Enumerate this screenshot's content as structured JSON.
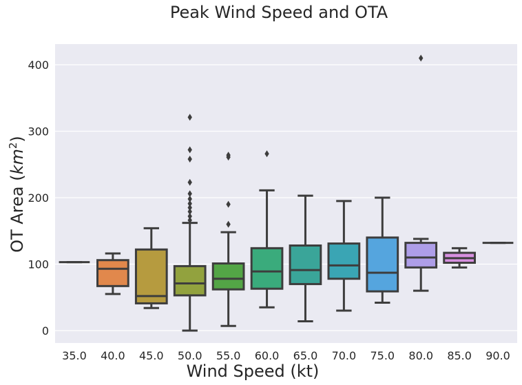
{
  "chart_data": {
    "type": "box",
    "title": "Peak Wind Speed and OTA",
    "xlabel": "Wind Speed (kt)",
    "ylabel": "OT Area (km²)",
    "ylabel_main": "OT Area (",
    "ylabel_km": "km",
    "ylabel_sup": "2",
    "ylabel_close": ")",
    "ylim": [
      -20,
      430
    ],
    "yticks": [
      0,
      100,
      200,
      300,
      400
    ],
    "grid": true,
    "categories": [
      "35.0",
      "40.0",
      "45.0",
      "50.0",
      "55.0",
      "60.0",
      "65.0",
      "70.0",
      "75.0",
      "80.0",
      "85.0",
      "90.0"
    ],
    "boxes": [
      {
        "category": "35.0",
        "whislo": 103,
        "q1": 103,
        "med": 103,
        "q3": 103,
        "whishi": 103,
        "fliers": [],
        "color": "#3a75ad"
      },
      {
        "category": "40.0",
        "whislo": 55,
        "q1": 67,
        "med": 93,
        "q3": 106,
        "whishi": 116,
        "fliers": [],
        "color": "#e1884c"
      },
      {
        "category": "45.0",
        "whislo": 34,
        "q1": 41,
        "med": 52,
        "q3": 122,
        "whishi": 154,
        "fliers": [],
        "color": "#b69b3f"
      },
      {
        "category": "50.0",
        "whislo": 0,
        "q1": 53,
        "med": 71,
        "q3": 97,
        "whishi": 162,
        "fliers": [
          321,
          272,
          258,
          223,
          206,
          198,
          191,
          185,
          179,
          172,
          166
        ],
        "color": "#92a23e"
      },
      {
        "category": "55.0",
        "whislo": 7,
        "q1": 62,
        "med": 78,
        "q3": 101,
        "whishi": 148,
        "fliers": [
          264,
          261,
          190,
          160
        ],
        "color": "#53a546"
      },
      {
        "category": "60.0",
        "whislo": 35,
        "q1": 63,
        "med": 89,
        "q3": 124,
        "whishi": 211,
        "fliers": [
          266
        ],
        "color": "#3aab7c"
      },
      {
        "category": "65.0",
        "whislo": 14,
        "q1": 70,
        "med": 91,
        "q3": 128,
        "whishi": 203,
        "fliers": [],
        "color": "#3aa599"
      },
      {
        "category": "70.0",
        "whislo": 30,
        "q1": 78,
        "med": 98,
        "q3": 131,
        "whishi": 195,
        "fliers": [],
        "color": "#3aa5b4"
      },
      {
        "category": "75.0",
        "whislo": 42,
        "q1": 59,
        "med": 87,
        "q3": 140,
        "whishi": 200,
        "fliers": [],
        "color": "#55a5de"
      },
      {
        "category": "80.0",
        "whislo": 60,
        "q1": 95,
        "med": 110,
        "q3": 132,
        "whishi": 138,
        "fliers": [
          410
        ],
        "color": "#ae9ee8"
      },
      {
        "category": "85.0",
        "whislo": 95,
        "q1": 102,
        "med": 109,
        "q3": 117,
        "whishi": 124,
        "fliers": [],
        "color": "#d790e0"
      },
      {
        "category": "90.0",
        "whislo": 132,
        "q1": 132,
        "med": 132,
        "q3": 132,
        "whishi": 132,
        "fliers": [],
        "color": "#e08fbf"
      }
    ],
    "colors": {
      "plot_background": "#eaeaf2",
      "grid": "#ffffff",
      "line": "#3d3d3d",
      "text": "#262626"
    }
  }
}
